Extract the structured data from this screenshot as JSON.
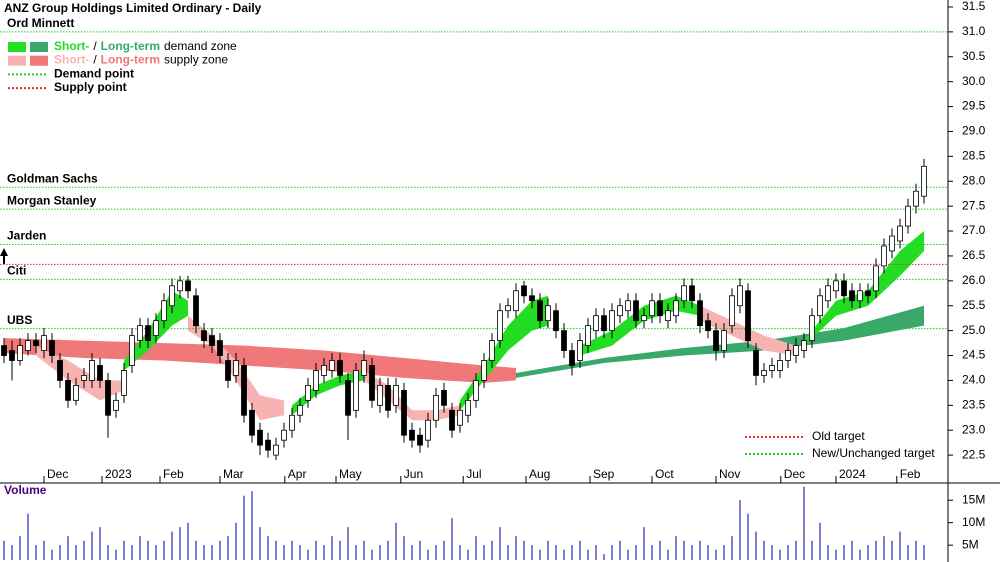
{
  "chart_data": [
    {
      "type": "candlestick",
      "title": "ANZ Group Holdings Limited Ordinary - Daily",
      "open": [
        24.7,
        24.6,
        24.4,
        24.6,
        24.8,
        24.6,
        24.8,
        24.4,
        24.0,
        23.6,
        24.0,
        24.0,
        24.3,
        24.0,
        23.4,
        23.7,
        24.3,
        24.8,
        25.1,
        24.9,
        25.2,
        25.5,
        25.8,
        26.0,
        25.7,
        25.0,
        24.9,
        24.8,
        24.4,
        24.1,
        24.3,
        23.4,
        23.0,
        22.8,
        22.5,
        22.8,
        23.0,
        23.3,
        23.6,
        23.8,
        24.1,
        24.2,
        24.4,
        24.0,
        23.4,
        24.1,
        24.3,
        23.5,
        23.9,
        23.5,
        23.8,
        23.0,
        22.9,
        22.8,
        23.2,
        23.8,
        23.4,
        23.1,
        23.3,
        23.6,
        24.0,
        24.4,
        24.8,
        25.4,
        25.4,
        25.9,
        25.7,
        25.6,
        25.2,
        25.4,
        25.0,
        24.6,
        24.4,
        24.7,
        25.0,
        25.3,
        25.0,
        25.3,
        25.4,
        25.6,
        25.2,
        25.3,
        25.6,
        25.2,
        25.3,
        25.6,
        25.9,
        25.6,
        25.2,
        25.0,
        24.6,
        25.1,
        25.5,
        25.8,
        24.6,
        24.1,
        24.2,
        24.2,
        24.4,
        24.5,
        24.6,
        24.8,
        25.3,
        25.6,
        25.8,
        26.0,
        25.8,
        25.6,
        25.8,
        25.8,
        26.3,
        26.6,
        26.8,
        27.1,
        27.5,
        27.7
      ],
      "high": [
        24.85,
        24.8,
        24.85,
        24.95,
        24.95,
        25.05,
        24.95,
        24.55,
        24.15,
        24.05,
        24.25,
        24.55,
        24.45,
        24.15,
        23.75,
        24.35,
        25.05,
        25.25,
        25.25,
        25.35,
        25.75,
        26.05,
        26.1,
        26.1,
        25.85,
        25.15,
        25.05,
        24.95,
        24.55,
        24.55,
        24.45,
        23.55,
        23.15,
        22.95,
        22.85,
        23.15,
        23.45,
        23.65,
        24.05,
        24.35,
        24.45,
        24.55,
        24.55,
        24.15,
        24.35,
        24.6,
        24.45,
        24.05,
        24.05,
        24.05,
        23.95,
        23.15,
        23.05,
        23.35,
        23.85,
        23.95,
        23.55,
        23.55,
        23.75,
        24.15,
        24.55,
        24.95,
        25.55,
        25.65,
        25.95,
        26.0,
        25.85,
        25.75,
        25.65,
        25.55,
        25.15,
        24.75,
        24.95,
        25.25,
        25.45,
        25.45,
        25.55,
        25.65,
        25.75,
        25.75,
        25.45,
        25.75,
        25.75,
        25.55,
        25.75,
        26.05,
        26.05,
        25.75,
        25.35,
        25.15,
        25.15,
        25.85,
        26.05,
        25.95,
        24.75,
        24.35,
        24.45,
        24.55,
        24.75,
        24.85,
        24.95,
        25.45,
        25.85,
        26.05,
        26.15,
        26.15,
        25.95,
        25.95,
        25.95,
        26.45,
        26.85,
        27.05,
        27.25,
        27.65,
        27.95,
        28.45
      ],
      "low": [
        24.35,
        24.0,
        24.3,
        24.5,
        24.55,
        24.45,
        24.35,
        23.85,
        23.45,
        23.5,
        23.85,
        23.85,
        23.85,
        22.85,
        23.25,
        23.55,
        24.15,
        24.65,
        24.65,
        24.75,
        25.05,
        25.35,
        25.65,
        25.65,
        24.95,
        24.65,
        24.55,
        24.35,
        23.85,
        23.95,
        23.15,
        22.75,
        22.5,
        22.45,
        22.4,
        22.65,
        22.85,
        23.15,
        23.45,
        23.65,
        23.95,
        24.05,
        23.95,
        22.8,
        23.25,
        23.95,
        23.45,
        23.35,
        23.25,
        23.35,
        22.75,
        22.65,
        22.55,
        22.65,
        23.05,
        23.35,
        22.85,
        22.95,
        23.15,
        23.45,
        23.85,
        24.25,
        24.65,
        25.25,
        25.25,
        25.55,
        25.45,
        25.05,
        25.05,
        24.85,
        24.45,
        24.1,
        24.25,
        24.55,
        24.85,
        24.85,
        24.85,
        25.15,
        25.25,
        25.05,
        25.05,
        25.15,
        25.15,
        25.05,
        25.15,
        25.45,
        25.45,
        24.95,
        24.85,
        24.4,
        24.45,
        24.95,
        25.35,
        24.65,
        23.9,
        23.95,
        24.05,
        24.05,
        24.25,
        24.35,
        24.45,
        24.65,
        25.15,
        25.45,
        25.65,
        25.55,
        25.45,
        25.45,
        25.55,
        25.65,
        26.15,
        26.45,
        26.65,
        26.95,
        27.35,
        27.55
      ],
      "close": [
        24.5,
        24.4,
        24.7,
        24.8,
        24.7,
        24.9,
        24.5,
        24.0,
        23.6,
        23.9,
        24.1,
        24.4,
        24.0,
        23.3,
        23.6,
        24.2,
        24.9,
        25.1,
        24.8,
        25.2,
        25.6,
        25.9,
        26.0,
        25.8,
        25.1,
        24.8,
        24.7,
        24.5,
        24.0,
        24.4,
        23.3,
        22.9,
        22.7,
        22.6,
        22.7,
        23.0,
        23.3,
        23.5,
        23.9,
        24.2,
        24.3,
        24.4,
        24.1,
        23.3,
        24.2,
        24.4,
        23.6,
        23.9,
        23.4,
        23.9,
        22.9,
        22.8,
        22.7,
        23.2,
        23.7,
        23.5,
        23.0,
        23.4,
        23.6,
        24.0,
        24.4,
        24.8,
        25.4,
        25.5,
        25.8,
        25.7,
        25.6,
        25.2,
        25.5,
        25.0,
        24.6,
        24.3,
        24.8,
        25.1,
        25.3,
        25.0,
        25.4,
        25.5,
        25.6,
        25.2,
        25.3,
        25.6,
        25.3,
        25.4,
        25.6,
        25.9,
        25.6,
        25.1,
        25.0,
        24.6,
        25.0,
        25.7,
        25.9,
        24.8,
        24.1,
        24.2,
        24.3,
        24.4,
        24.6,
        24.7,
        24.8,
        25.3,
        25.7,
        25.9,
        26.0,
        25.7,
        25.6,
        25.8,
        25.7,
        26.3,
        26.7,
        26.9,
        27.1,
        27.5,
        27.8,
        28.3
      ],
      "xlim": [
        -0.5,
        115.5
      ],
      "xticks": [
        {
          "value": 5,
          "label": "Dec"
        },
        {
          "value": 12.25,
          "label": "2023"
        },
        {
          "value": 19.5,
          "label": "Feb"
        },
        {
          "value": 27,
          "label": "Mar"
        },
        {
          "value": 35.1,
          "label": "Apr"
        },
        {
          "value": 41.5,
          "label": "May"
        },
        {
          "value": 49.6,
          "label": "Jun"
        },
        {
          "value": 57.4,
          "label": "Jul"
        },
        {
          "value": 65.25,
          "label": "Aug"
        },
        {
          "value": 73.25,
          "label": "Sep"
        },
        {
          "value": 81,
          "label": "Oct"
        },
        {
          "value": 89,
          "label": "Nov"
        },
        {
          "value": 97.1,
          "label": "Dec"
        },
        {
          "value": 104,
          "label": "2024"
        },
        {
          "value": 111.6,
          "label": "Feb"
        }
      ],
      "ylim": [
        21.94,
        31.64
      ],
      "yticks": [
        22.5,
        {
          "value": 23,
          "label": "23.0"
        },
        23.5,
        {
          "value": 24,
          "label": "24.0"
        },
        24.5,
        {
          "value": 25,
          "label": "25.0"
        },
        25.5,
        {
          "value": 26,
          "label": "26.0"
        },
        26.5,
        {
          "value": 27,
          "label": "27.0"
        },
        27.5,
        {
          "value": 28,
          "label": "28.0"
        },
        28.5,
        {
          "value": 29,
          "label": "29.0"
        },
        29.5,
        {
          "value": 30,
          "label": "30.0"
        },
        30.5,
        {
          "value": 31,
          "label": "31.0"
        },
        31.5
      ],
      "zones": [
        {
          "color": "#f07878",
          "bands": [
            {
              "x": [
                0,
                10,
                20,
                30,
                40,
                50,
                60,
                64
              ],
              "lower": [
                24.55,
                24.45,
                24.4,
                24.3,
                24.2,
                24.05,
                23.95,
                24.0
              ],
              "upper": [
                24.85,
                24.8,
                24.75,
                24.7,
                24.6,
                24.45,
                24.3,
                24.25
              ]
            }
          ]
        },
        {
          "color": "#3aa86a",
          "bands": [
            {
              "x": [
                64,
                75,
                85,
                95,
                105,
                115
              ],
              "lower": [
                24.05,
                24.35,
                24.5,
                24.6,
                24.8,
                25.1
              ],
              "upper": [
                24.15,
                24.45,
                24.65,
                24.8,
                25.05,
                25.5
              ]
            }
          ]
        },
        {
          "color": "#f7b2b2",
          "bands": [
            {
              "x": [
                4,
                8,
                12,
                15
              ],
              "lower": [
                24.5,
                24.0,
                23.6,
                23.8
              ],
              "upper": [
                24.7,
                24.4,
                24.0,
                24.0
              ]
            },
            {
              "x": [
                23,
                26,
                29,
                32,
                35
              ],
              "lower": [
                25.0,
                24.7,
                24.0,
                23.2,
                23.3
              ],
              "upper": [
                25.3,
                24.9,
                24.4,
                23.7,
                23.6
              ]
            },
            {
              "x": [
                45,
                48,
                51,
                54,
                57
              ],
              "lower": [
                24.0,
                23.6,
                23.2,
                23.2,
                23.3
              ],
              "upper": [
                24.2,
                23.9,
                23.4,
                23.4,
                23.5
              ]
            },
            {
              "x": [
                87,
                91,
                95,
                99
              ],
              "lower": [
                25.2,
                24.9,
                24.6,
                24.5
              ],
              "upper": [
                25.5,
                25.2,
                24.9,
                24.7
              ]
            }
          ]
        },
        {
          "color": "#22dd22",
          "bands": [
            {
              "x": [
                15,
                18,
                21,
                23
              ],
              "lower": [
                24.2,
                24.6,
                25.1,
                25.3
              ],
              "upper": [
                24.4,
                25.0,
                25.8,
                25.6
              ]
            },
            {
              "x": [
                36,
                39,
                42,
                45
              ],
              "lower": [
                23.3,
                23.7,
                23.9,
                24.0
              ],
              "upper": [
                23.5,
                23.9,
                24.1,
                24.2
              ]
            },
            {
              "x": [
                57,
                60,
                63,
                66,
                68
              ],
              "lower": [
                23.4,
                24.0,
                24.6,
                25.0,
                25.1
              ],
              "upper": [
                23.6,
                24.3,
                25.1,
                25.6,
                25.7
              ]
            },
            {
              "x": [
                72,
                76,
                80,
                84,
                87
              ],
              "lower": [
                24.5,
                24.7,
                25.2,
                25.4,
                25.3
              ],
              "upper": [
                24.7,
                25.0,
                25.5,
                25.7,
                25.5
              ]
            },
            {
              "x": [
                100,
                104,
                108,
                112,
                115
              ],
              "lower": [
                24.7,
                25.3,
                25.5,
                26.1,
                26.6
              ],
              "upper": [
                24.8,
                25.6,
                25.8,
                26.6,
                27.0
              ]
            }
          ]
        }
      ],
      "targets": [
        {
          "label": "Ord Minnett",
          "value": 31.0,
          "color": "#22cc22"
        },
        {
          "label": "Goldman Sachs",
          "value": 27.88,
          "color": "#22cc22"
        },
        {
          "label": "Morgan Stanley",
          "value": 27.44,
          "color": "#22cc22"
        },
        {
          "label": "Jarden",
          "value": 26.73,
          "color": "#22cc22"
        },
        {
          "value": 26.33,
          "color": "#e03030"
        },
        {
          "label": "Citi",
          "value": 26.03,
          "color": "#22cc22"
        },
        {
          "label": "UBS",
          "value": 25.04,
          "color": "#22cc22"
        }
      ],
      "legend": [
        {
          "swatches": [
            "#22dd22",
            "#3aa86a"
          ],
          "parts": [
            {
              "text": "Short-",
              "color": "#22dd22"
            },
            {
              "text": "/",
              "color": "#000000"
            },
            {
              "text": "Long-term",
              "color": "#3aa86a"
            },
            {
              "text": "demand zone",
              "color": "#000000"
            }
          ]
        },
        {
          "swatches": [
            "#f7b2b2",
            "#f07878"
          ],
          "parts": [
            {
              "text": "Short-",
              "color": "#f7b2b2"
            },
            {
              "text": "/",
              "color": "#000000"
            },
            {
              "text": "Long-term",
              "color": "#f07878"
            },
            {
              "text": "supply zone",
              "color": "#000000"
            }
          ]
        },
        {
          "line": "#22cc22",
          "parts": [
            {
              "text": "Demand point",
              "color": "#000000"
            }
          ]
        },
        {
          "line": "#e03030",
          "parts": [
            {
              "text": "Supply point",
              "color": "#000000"
            }
          ]
        }
      ],
      "target_legend": [
        {
          "label": "Old target",
          "color": "#e03030"
        },
        {
          "label": "New/Unchanged target",
          "color": "#22cc22"
        }
      ]
    },
    {
      "type": "bar",
      "title": "Volume",
      "color": "#6f6fd0",
      "values": [
        6,
        5,
        7,
        12,
        5,
        6,
        4,
        5,
        7,
        5,
        6,
        8,
        9,
        5,
        4,
        6,
        5,
        7,
        6,
        5,
        6,
        8,
        9,
        10,
        6,
        5,
        5,
        6,
        7,
        10,
        16,
        17,
        9,
        7,
        6,
        5,
        6,
        5,
        4,
        6,
        5,
        7,
        6,
        9,
        5,
        6,
        4,
        5,
        6,
        10,
        7,
        5,
        6,
        4,
        5,
        6,
        11,
        5,
        4,
        7,
        5,
        6,
        9,
        5,
        7,
        6,
        5,
        4,
        6,
        5,
        4,
        5,
        6,
        4,
        5,
        3,
        5,
        6,
        4,
        5,
        9,
        5,
        6,
        4,
        7,
        6,
        5,
        6,
        5,
        4,
        5,
        7,
        15,
        12,
        8,
        6,
        5,
        4,
        5,
        6,
        18,
        6,
        10,
        5,
        4,
        5,
        6,
        4,
        5,
        6,
        7,
        6,
        8,
        5,
        6,
        5
      ],
      "ylim": [
        1.7,
        18.6
      ],
      "yticks": [
        {
          "value": 5,
          "label": "5M"
        },
        {
          "value": 10,
          "label": "10M"
        },
        {
          "value": 15,
          "label": "15M"
        }
      ]
    }
  ]
}
